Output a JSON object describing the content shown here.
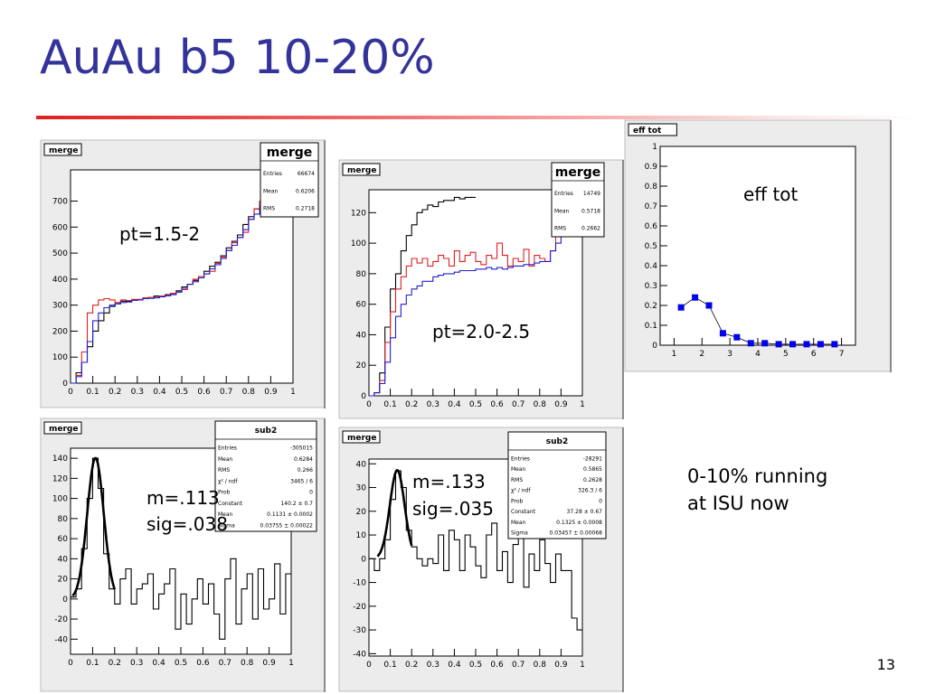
{
  "slide": {
    "title": "AuAu b5 10-20%",
    "page_number": "13",
    "note_line1": "0-10% running",
    "note_line2": "at ISU now",
    "colors": {
      "title": "#33339a",
      "rule": "#e02020",
      "red": "#e02020",
      "blue": "#2020d0",
      "marker": "#0000ee"
    }
  },
  "chart_data": [
    {
      "id": "p1",
      "type": "line",
      "pad_label": "merge",
      "annotation": "pt=1.5-2",
      "xlim": [
        0,
        1
      ],
      "ylim": [
        0,
        820
      ],
      "xticks": [
        "0",
        "0.1",
        "0.2",
        "0.3",
        "0.4",
        "0.5",
        "0.6",
        "0.7",
        "0.8",
        "0.9",
        "1"
      ],
      "yticks": [
        {
          "v": 0,
          "t": "0"
        },
        {
          "v": 100,
          "t": "100"
        },
        {
          "v": 200,
          "t": "200"
        },
        {
          "v": 300,
          "t": "300"
        },
        {
          "v": 400,
          "t": "400"
        },
        {
          "v": 500,
          "t": "500"
        },
        {
          "v": 600,
          "t": "600"
        },
        {
          "v": 700,
          "t": "700"
        }
      ],
      "stats": {
        "title": "merge",
        "rows": [
          [
            "Entries",
            "66674"
          ],
          [
            "Mean",
            "0.6206"
          ],
          [
            "RMS",
            "0.2718"
          ]
        ]
      },
      "series": [
        {
          "color": "#000000",
          "values": [
            0,
            40,
            80,
            140,
            200,
            240,
            270,
            295,
            305,
            315,
            315,
            320,
            320,
            325,
            330,
            335,
            335,
            340,
            345,
            355,
            370,
            380,
            395,
            410,
            430,
            450,
            465,
            490,
            520,
            545,
            570,
            610,
            640,
            670,
            700,
            720,
            745,
            760,
            800,
            820
          ]
        },
        {
          "color": "#e02020",
          "values": [
            0,
            30,
            120,
            270,
            300,
            320,
            325,
            320,
            310,
            320,
            318,
            322,
            322,
            328,
            330,
            330,
            335,
            338,
            345,
            350,
            360,
            380,
            400,
            410,
            420,
            430,
            460,
            485,
            510,
            540,
            560,
            580,
            630,
            670,
            700,
            720,
            740,
            760,
            780,
            800
          ]
        },
        {
          "color": "#2020d0",
          "values": [
            0,
            25,
            80,
            160,
            240,
            270,
            290,
            300,
            305,
            310,
            312,
            318,
            320,
            325,
            326,
            328,
            332,
            336,
            340,
            350,
            365,
            380,
            390,
            405,
            420,
            440,
            455,
            480,
            510,
            530,
            560,
            590,
            630,
            650,
            680,
            700,
            720,
            730,
            750,
            760
          ]
        }
      ]
    },
    {
      "id": "p2",
      "type": "line",
      "pad_label": "merge",
      "annotation": "pt=2.0-2.5",
      "xlim": [
        0,
        1
      ],
      "ylim": [
        0,
        135
      ],
      "xticks": [
        "0",
        "0.1",
        "0.2",
        "0.3",
        "0.4",
        "0.5",
        "0.6",
        "0.7",
        "0.8",
        "0.9",
        "1"
      ],
      "yticks": [
        {
          "v": 0,
          "t": "0"
        },
        {
          "v": 20,
          "t": "20"
        },
        {
          "v": 40,
          "t": "40"
        },
        {
          "v": 60,
          "t": "60"
        },
        {
          "v": 80,
          "t": "80"
        },
        {
          "v": 100,
          "t": "100"
        },
        {
          "v": 120,
          "t": "120"
        }
      ],
      "stats": {
        "title": "merge",
        "rows": [
          [
            "Entries",
            "14749"
          ],
          [
            "Mean",
            "0.5718"
          ],
          [
            "RMS",
            "0.2662"
          ]
        ]
      },
      "series": [
        {
          "color": "#000000",
          "values": [
            0,
            2,
            15,
            45,
            70,
            80,
            95,
            105,
            112,
            120,
            122,
            125,
            124,
            127,
            128,
            128,
            130,
            129,
            130,
            130,
            null,
            null,
            null,
            null,
            null,
            null,
            null,
            null,
            null,
            null,
            null,
            null,
            null,
            null,
            null,
            null,
            null,
            null,
            null,
            null
          ]
        },
        {
          "color": "#e02020",
          "values": [
            0,
            2,
            10,
            35,
            55,
            70,
            78,
            85,
            90,
            87,
            90,
            85,
            88,
            92,
            90,
            85,
            95,
            88,
            92,
            94,
            88,
            86,
            92,
            90,
            100,
            92,
            85,
            90,
            88,
            96,
            85,
            92,
            90,
            88,
            95,
            120,
            108,
            112,
            128,
            135
          ]
        },
        {
          "color": "#2020d0",
          "values": [
            0,
            2,
            8,
            22,
            38,
            52,
            60,
            66,
            70,
            72,
            75,
            75,
            78,
            79,
            80,
            80,
            81,
            82,
            82,
            82,
            83,
            83,
            84,
            83,
            84,
            83,
            84,
            85,
            85,
            86,
            86,
            87,
            88,
            88,
            95,
            100,
            112,
            120,
            125,
            130
          ]
        }
      ]
    },
    {
      "id": "p3",
      "type": "line",
      "pad_label": "merge",
      "annotation_line1": "m=.113",
      "annotation_line2": "sig=.038",
      "xlim": [
        0,
        1
      ],
      "ylim": [
        -55,
        150
      ],
      "xticks": [
        "0",
        "0.1",
        "0.2",
        "0.3",
        "0.4",
        "0.5",
        "0.6",
        "0.7",
        "0.8",
        "0.9",
        "1"
      ],
      "yticks": [
        {
          "v": -40,
          "t": "-40"
        },
        {
          "v": -20,
          "t": "-20"
        },
        {
          "v": 0,
          "t": "0"
        },
        {
          "v": 20,
          "t": "20"
        },
        {
          "v": 40,
          "t": "40"
        },
        {
          "v": 60,
          "t": "60"
        },
        {
          "v": 80,
          "t": "80"
        },
        {
          "v": 100,
          "t": "100"
        },
        {
          "v": 120,
          "t": "120"
        },
        {
          "v": 140,
          "t": "140"
        }
      ],
      "stats": {
        "title": "sub2",
        "rows": [
          [
            "Entries",
            "-305015"
          ],
          [
            "Mean",
            "0.6284"
          ],
          [
            "RMS",
            "0.266"
          ],
          [
            "χ² / ndf",
            "3465 / 6"
          ],
          [
            "Prob",
            "0"
          ],
          [
            "Constant",
            "140.2 ± 0.7"
          ],
          [
            "Mean",
            "0.1131 ± 0.0002"
          ],
          [
            "Sigma",
            "0.03755 ± 0.00022"
          ]
        ]
      },
      "fit": {
        "constant": 140.2,
        "mean": 0.1131,
        "sigma": 0.03755,
        "xrange": [
          0.01,
          0.2
        ]
      },
      "series": [
        {
          "color": "#000000",
          "values": [
            2,
            10,
            50,
            100,
            140,
            110,
            45,
            10,
            -5,
            20,
            30,
            -5,
            10,
            15,
            25,
            -10,
            5,
            15,
            30,
            -30,
            5,
            -25,
            0,
            20,
            -5,
            15,
            -15,
            -40,
            20,
            40,
            -25,
            10,
            25,
            -20,
            30,
            -10,
            0,
            35,
            -15,
            25
          ]
        }
      ]
    },
    {
      "id": "p4",
      "type": "line",
      "pad_label": "merge",
      "annotation_line1": "m=.133",
      "annotation_line2": "sig=.035",
      "xlim": [
        0,
        1
      ],
      "ylim": [
        -41,
        42
      ],
      "xticks": [
        "0",
        "0.1",
        "0.2",
        "0.3",
        "0.4",
        "0.5",
        "0.6",
        "0.7",
        "0.8",
        "0.9",
        "1"
      ],
      "yticks": [
        {
          "v": -40,
          "t": "-40"
        },
        {
          "v": -30,
          "t": "-30"
        },
        {
          "v": -20,
          "t": "-20"
        },
        {
          "v": -10,
          "t": "-10"
        },
        {
          "v": 0,
          "t": "0"
        },
        {
          "v": 10,
          "t": "10"
        },
        {
          "v": 20,
          "t": "20"
        },
        {
          "v": 30,
          "t": "30"
        },
        {
          "v": 40,
          "t": "40"
        }
      ],
      "stats": {
        "title": "sub2",
        "rows": [
          [
            "Entries",
            "-28291"
          ],
          [
            "Mean",
            "0.5865"
          ],
          [
            "RMS",
            "0.2628"
          ],
          [
            "χ² / ndf",
            "326.3 / 6"
          ],
          [
            "Prob",
            "0"
          ],
          [
            "Constant",
            "37.28 ± 0.67"
          ],
          [
            "Mean",
            "0.1325 ± 0.0008"
          ],
          [
            "Sigma",
            "0.03457 ± 0.00068"
          ]
        ]
      },
      "fit": {
        "constant": 37.28,
        "mean": 0.1325,
        "sigma": 0.03457,
        "xrange": [
          0.04,
          0.2
        ]
      },
      "series": [
        {
          "color": "#000000",
          "values": [
            0,
            -5,
            0,
            8,
            25,
            37,
            30,
            12,
            5,
            0,
            -3,
            0,
            -2,
            10,
            -5,
            12,
            8,
            -5,
            10,
            5,
            -3,
            -8,
            10,
            15,
            -5,
            3,
            -10,
            6,
            12,
            -12,
            2,
            -5,
            8,
            -2,
            -10,
            2,
            -5,
            -5,
            -25,
            -30
          ]
        }
      ]
    },
    {
      "id": "p5",
      "type": "scatter",
      "pad_label": "eff tot",
      "annotation": "eff tot",
      "xlim": [
        0.5,
        7.5
      ],
      "ylim": [
        0,
        1
      ],
      "xticks": [
        "1",
        "2",
        "3",
        "4",
        "5",
        "6",
        "7"
      ],
      "yticks": [
        {
          "v": 0,
          "t": "0"
        },
        {
          "v": 0.1,
          "t": "0.1"
        },
        {
          "v": 0.2,
          "t": "0.2"
        },
        {
          "v": 0.3,
          "t": "0.3"
        },
        {
          "v": 0.4,
          "t": "0.4"
        },
        {
          "v": 0.5,
          "t": "0.5"
        },
        {
          "v": 0.6,
          "t": "0.6"
        },
        {
          "v": 0.7,
          "t": "0.7"
        },
        {
          "v": 0.8,
          "t": "0.8"
        },
        {
          "v": 0.9,
          "t": "0.9"
        },
        {
          "v": 1,
          "t": "1"
        }
      ],
      "x": [
        1.25,
        1.75,
        2.25,
        2.75,
        3.25,
        3.75,
        4.25,
        4.75,
        5.25,
        5.75,
        6.25,
        6.75
      ],
      "y": [
        0.19,
        0.24,
        0.2,
        0.06,
        0.04,
        0.01,
        0.01,
        0.005,
        0.005,
        0.005,
        0.005,
        0.005
      ]
    }
  ]
}
